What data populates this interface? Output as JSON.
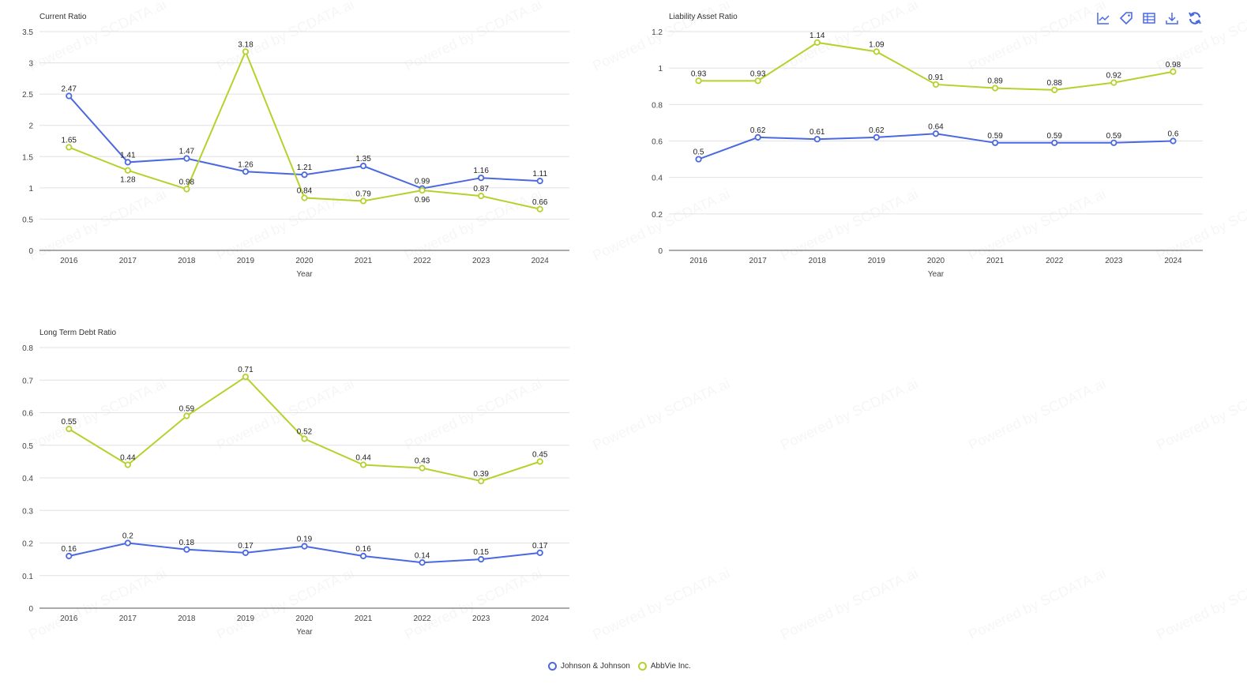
{
  "toolbar": {
    "icons": [
      "line-chart-icon",
      "tag-icon",
      "data-table-icon",
      "download-icon",
      "refresh-icon"
    ]
  },
  "legend": [
    {
      "name": "Johnson & Johnson",
      "color": "#4a68e0"
    },
    {
      "name": "AbbVie Inc.",
      "color": "#b5d22c"
    }
  ],
  "watermark": "Powered by SCDATA.ai",
  "chart_data": [
    {
      "type": "line",
      "title": "Current Ratio",
      "xlabel": "Year",
      "ylabel": "",
      "categories": [
        "2016",
        "2017",
        "2018",
        "2019",
        "2020",
        "2021",
        "2022",
        "2023",
        "2024"
      ],
      "ylim": [
        0,
        3.5
      ],
      "yticks": [
        0,
        0.5,
        1,
        1.5,
        2,
        2.5,
        3,
        3.5
      ],
      "ytick_labels": [
        "0",
        "0.5",
        "1",
        "1.5",
        "2",
        "2.5",
        "3",
        "3.5"
      ],
      "grid": true,
      "series": [
        {
          "name": "Johnson & Johnson",
          "values": [
            2.47,
            1.41,
            1.47,
            1.26,
            1.21,
            1.35,
            0.99,
            1.16,
            1.11
          ]
        },
        {
          "name": "AbbVie Inc.",
          "values": [
            1.65,
            1.28,
            0.98,
            3.18,
            0.84,
            0.79,
            0.96,
            0.87,
            0.66
          ]
        }
      ]
    },
    {
      "type": "line",
      "title": "Liability Asset Ratio",
      "xlabel": "Year",
      "ylabel": "",
      "categories": [
        "2016",
        "2017",
        "2018",
        "2019",
        "2020",
        "2021",
        "2022",
        "2023",
        "2024"
      ],
      "ylim": [
        0,
        1.2
      ],
      "yticks": [
        0,
        0.2,
        0.4,
        0.6,
        0.8,
        1,
        1.2
      ],
      "ytick_labels": [
        "0",
        "0.2",
        "0.4",
        "0.6",
        "0.8",
        "1",
        "1.2"
      ],
      "grid": true,
      "series": [
        {
          "name": "Johnson & Johnson",
          "values": [
            0.5,
            0.62,
            0.61,
            0.62,
            0.64,
            0.59,
            0.59,
            0.59,
            0.6
          ]
        },
        {
          "name": "AbbVie Inc.",
          "values": [
            0.93,
            0.93,
            1.14,
            1.09,
            0.91,
            0.89,
            0.88,
            0.92,
            0.98
          ]
        }
      ]
    },
    {
      "type": "line",
      "title": "Long Term Debt Ratio",
      "xlabel": "Year",
      "ylabel": "",
      "categories": [
        "2016",
        "2017",
        "2018",
        "2019",
        "2020",
        "2021",
        "2022",
        "2023",
        "2024"
      ],
      "ylim": [
        0,
        0.8
      ],
      "yticks": [
        0,
        0.1,
        0.2,
        0.3,
        0.4,
        0.5,
        0.6,
        0.7,
        0.8
      ],
      "ytick_labels": [
        "0",
        "0.1",
        "0.2",
        "0.3",
        "0.4",
        "0.5",
        "0.6",
        "0.7",
        "0.8"
      ],
      "grid": true,
      "series": [
        {
          "name": "Johnson & Johnson",
          "values": [
            0.16,
            0.2,
            0.18,
            0.17,
            0.19,
            0.16,
            0.14,
            0.15,
            0.17
          ]
        },
        {
          "name": "AbbVie Inc.",
          "values": [
            0.55,
            0.44,
            0.59,
            0.71,
            0.52,
            0.44,
            0.43,
            0.39,
            0.45
          ]
        }
      ]
    }
  ]
}
